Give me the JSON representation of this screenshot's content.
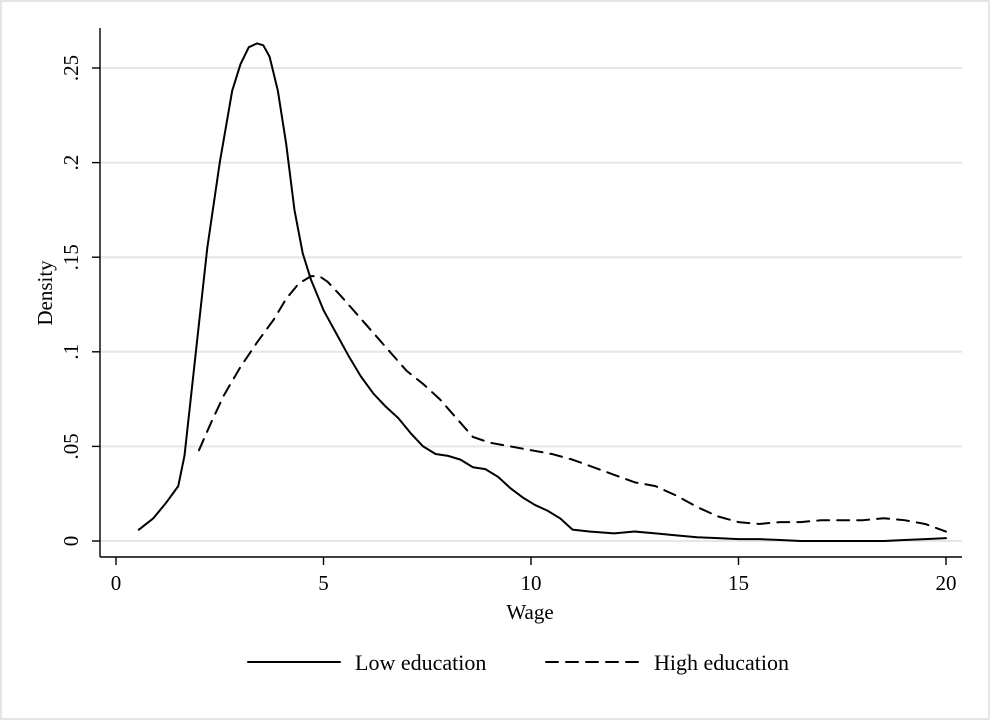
{
  "chart_data": {
    "type": "line",
    "xlabel": "Wage",
    "ylabel": "Density",
    "xlim": [
      0,
      20
    ],
    "ylim": [
      0,
      0.265
    ],
    "xticks": [
      0,
      5,
      10,
      15,
      20
    ],
    "xtick_labels": [
      "0",
      "5",
      "10",
      "15",
      "20"
    ],
    "yticks": [
      0,
      0.05,
      0.1,
      0.15,
      0.2,
      0.25
    ],
    "ytick_labels": [
      "0",
      ".05",
      ".1",
      ".15",
      ".2",
      ".25"
    ],
    "grid": true,
    "legend_position": "bottom",
    "series": [
      {
        "name": "Low education",
        "dash": "solid",
        "x": [
          0.55,
          0.9,
          1.2,
          1.5,
          1.65,
          1.8,
          2.0,
          2.2,
          2.5,
          2.8,
          3.0,
          3.2,
          3.4,
          3.55,
          3.7,
          3.9,
          4.1,
          4.3,
          4.5,
          4.7,
          5.0,
          5.3,
          5.6,
          5.9,
          6.2,
          6.5,
          6.8,
          7.1,
          7.4,
          7.7,
          8.0,
          8.3,
          8.6,
          8.9,
          9.2,
          9.5,
          9.8,
          10.1,
          10.4,
          10.7,
          11.0,
          11.4,
          12.0,
          12.5,
          13.0,
          13.5,
          14.0,
          14.5,
          15.0,
          15.5,
          16.0,
          16.5,
          17.0,
          17.5,
          18.0,
          18.5,
          19.0,
          19.5,
          20.0
        ],
        "y": [
          0.006,
          0.012,
          0.02,
          0.029,
          0.045,
          0.075,
          0.115,
          0.155,
          0.2,
          0.238,
          0.252,
          0.261,
          0.263,
          0.262,
          0.256,
          0.238,
          0.21,
          0.175,
          0.152,
          0.138,
          0.122,
          0.11,
          0.098,
          0.087,
          0.078,
          0.071,
          0.065,
          0.057,
          0.05,
          0.046,
          0.045,
          0.043,
          0.039,
          0.038,
          0.034,
          0.028,
          0.023,
          0.019,
          0.016,
          0.012,
          0.006,
          0.005,
          0.004,
          0.005,
          0.004,
          0.003,
          0.002,
          0.0015,
          0.001,
          0.001,
          0.0005,
          0.0,
          0.0,
          0.0,
          0.0,
          0.0,
          0.0005,
          0.001,
          0.0015
        ]
      },
      {
        "name": "High education",
        "dash": "dashed",
        "x": [
          2.0,
          2.3,
          2.6,
          3.0,
          3.4,
          3.8,
          4.1,
          4.4,
          4.7,
          4.9,
          5.1,
          5.4,
          5.8,
          6.2,
          6.6,
          7.0,
          7.4,
          7.8,
          8.2,
          8.6,
          9.0,
          9.5,
          10.0,
          10.5,
          11.0,
          11.5,
          12.0,
          12.5,
          13.0,
          13.5,
          14.0,
          14.5,
          15.0,
          15.5,
          16.0,
          16.5,
          17.0,
          17.5,
          18.0,
          18.5,
          19.0,
          19.5,
          20.0
        ],
        "y": [
          0.048,
          0.063,
          0.077,
          0.092,
          0.105,
          0.117,
          0.128,
          0.136,
          0.14,
          0.14,
          0.137,
          0.13,
          0.12,
          0.11,
          0.1,
          0.09,
          0.083,
          0.075,
          0.065,
          0.055,
          0.052,
          0.05,
          0.048,
          0.046,
          0.043,
          0.039,
          0.035,
          0.031,
          0.029,
          0.024,
          0.018,
          0.013,
          0.01,
          0.009,
          0.01,
          0.01,
          0.011,
          0.011,
          0.011,
          0.012,
          0.011,
          0.009,
          0.005
        ]
      }
    ]
  }
}
